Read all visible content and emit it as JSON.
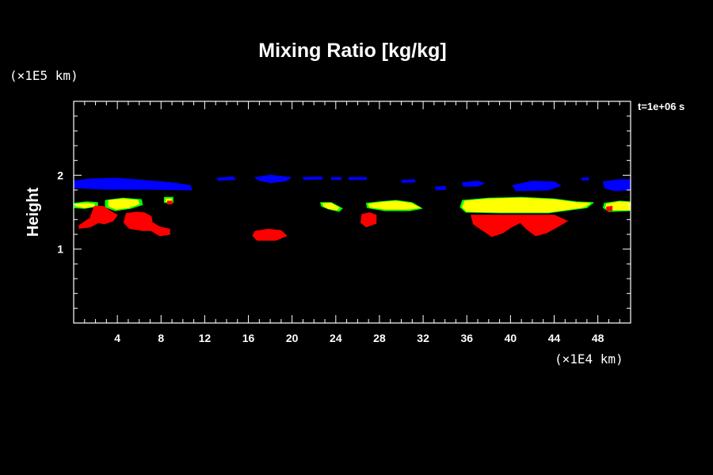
{
  "chart_data": {
    "type": "heatmap",
    "title": "Mixing Ratio [kg/kg]",
    "ylabel": "Height",
    "y_unit": "(×1E5 km)",
    "x_unit": "(×1E4 km)",
    "time_label": "t=1e+06 s",
    "xlim": [
      0,
      51
    ],
    "ylim": [
      0,
      3
    ],
    "x_ticks": [
      4,
      8,
      12,
      16,
      20,
      24,
      28,
      32,
      36,
      40,
      44,
      48
    ],
    "y_ticks": [
      1,
      2
    ],
    "levels": [
      {
        "level": "blue",
        "color": "#0000ff"
      },
      {
        "level": "green",
        "color": "#00ff00"
      },
      {
        "level": "yellow",
        "color": "#ffff00"
      },
      {
        "level": "red",
        "color": "#ff0000"
      }
    ],
    "regions": [
      {
        "level": "blue",
        "pts": [
          [
            0,
            1.92
          ],
          [
            1.5,
            1.95
          ],
          [
            4,
            1.96
          ],
          [
            6.5,
            1.93
          ],
          [
            9,
            1.9
          ],
          [
            10.7,
            1.86
          ],
          [
            10.8,
            1.8
          ],
          [
            7,
            1.81
          ],
          [
            3,
            1.81
          ],
          [
            0,
            1.83
          ]
        ]
      },
      {
        "level": "blue",
        "pts": [
          [
            13.1,
            1.96
          ],
          [
            14.6,
            1.98
          ],
          [
            14.8,
            1.94
          ],
          [
            13.3,
            1.93
          ]
        ]
      },
      {
        "level": "blue",
        "pts": [
          [
            16.6,
            1.97
          ],
          [
            18,
            2.0
          ],
          [
            19.9,
            1.97
          ],
          [
            19.4,
            1.92
          ],
          [
            18,
            1.9
          ],
          [
            17,
            1.93
          ]
        ]
      },
      {
        "level": "blue",
        "pts": [
          [
            21,
            1.97
          ],
          [
            22.7,
            1.98
          ],
          [
            22.8,
            1.95
          ],
          [
            21.1,
            1.94
          ]
        ]
      },
      {
        "level": "blue",
        "pts": [
          [
            23.6,
            1.97
          ],
          [
            24.5,
            1.97
          ],
          [
            24.5,
            1.94
          ],
          [
            23.6,
            1.94
          ]
        ]
      },
      {
        "level": "blue",
        "pts": [
          [
            25.2,
            1.97
          ],
          [
            26.8,
            1.97
          ],
          [
            26.8,
            1.94
          ],
          [
            25.2,
            1.94
          ]
        ]
      },
      {
        "level": "blue",
        "pts": [
          [
            30,
            1.93
          ],
          [
            31.2,
            1.94
          ],
          [
            31.3,
            1.91
          ],
          [
            30.1,
            1.9
          ]
        ]
      },
      {
        "level": "blue",
        "pts": [
          [
            33.1,
            1.84
          ],
          [
            34,
            1.85
          ],
          [
            34.1,
            1.81
          ],
          [
            33.2,
            1.8
          ]
        ]
      },
      {
        "level": "blue",
        "pts": [
          [
            35.6,
            1.9
          ],
          [
            37,
            1.92
          ],
          [
            37.6,
            1.89
          ],
          [
            37,
            1.85
          ],
          [
            35.7,
            1.85
          ]
        ]
      },
      {
        "level": "blue",
        "pts": [
          [
            40.2,
            1.86
          ],
          [
            42,
            1.92
          ],
          [
            44,
            1.91
          ],
          [
            44.6,
            1.86
          ],
          [
            43.5,
            1.8
          ],
          [
            40.5,
            1.79
          ]
        ]
      },
      {
        "level": "blue",
        "pts": [
          [
            46.5,
            1.96
          ],
          [
            47.1,
            1.97
          ],
          [
            47.2,
            1.94
          ],
          [
            46.6,
            1.93
          ]
        ]
      },
      {
        "level": "blue",
        "pts": [
          [
            48.5,
            1.91
          ],
          [
            50,
            1.94
          ],
          [
            51,
            1.94
          ],
          [
            51,
            1.8
          ],
          [
            49.5,
            1.79
          ],
          [
            48.6,
            1.83
          ]
        ]
      },
      {
        "level": "green",
        "pts": [
          [
            0,
            1.62
          ],
          [
            1.2,
            1.64
          ],
          [
            2.2,
            1.63
          ],
          [
            2.2,
            1.58
          ],
          [
            1,
            1.55
          ],
          [
            0,
            1.56
          ]
        ]
      },
      {
        "level": "green",
        "pts": [
          [
            2.9,
            1.66
          ],
          [
            4.5,
            1.69
          ],
          [
            6.2,
            1.67
          ],
          [
            6.3,
            1.6
          ],
          [
            5.2,
            1.55
          ],
          [
            3.8,
            1.52
          ],
          [
            2.9,
            1.57
          ]
        ]
      },
      {
        "level": "green",
        "pts": [
          [
            8.3,
            1.7
          ],
          [
            9.1,
            1.7
          ],
          [
            9.1,
            1.63
          ],
          [
            8.3,
            1.63
          ]
        ]
      },
      {
        "level": "green",
        "pts": [
          [
            22.6,
            1.63
          ],
          [
            23.6,
            1.63
          ],
          [
            24.6,
            1.55
          ],
          [
            24.3,
            1.51
          ],
          [
            23.4,
            1.54
          ],
          [
            22.7,
            1.58
          ]
        ]
      },
      {
        "level": "green",
        "pts": [
          [
            26.8,
            1.62
          ],
          [
            28,
            1.64
          ],
          [
            29.5,
            1.66
          ],
          [
            31,
            1.63
          ],
          [
            31.9,
            1.55
          ],
          [
            30.8,
            1.52
          ],
          [
            28.5,
            1.52
          ],
          [
            26.9,
            1.56
          ]
        ]
      },
      {
        "level": "green",
        "pts": [
          [
            35.6,
            1.66
          ],
          [
            38,
            1.69
          ],
          [
            41,
            1.7
          ],
          [
            44,
            1.68
          ],
          [
            46,
            1.64
          ],
          [
            47.6,
            1.63
          ],
          [
            47,
            1.56
          ],
          [
            43.5,
            1.49
          ],
          [
            39,
            1.49
          ],
          [
            35.9,
            1.5
          ],
          [
            35.4,
            1.57
          ]
        ]
      },
      {
        "level": "green",
        "pts": [
          [
            48.6,
            1.62
          ],
          [
            50,
            1.65
          ],
          [
            51,
            1.64
          ],
          [
            51,
            1.52
          ],
          [
            49,
            1.51
          ],
          [
            48.5,
            1.56
          ]
        ]
      },
      {
        "level": "yellow",
        "pts": [
          [
            0.2,
            1.61
          ],
          [
            1.1,
            1.62
          ],
          [
            1.9,
            1.61
          ],
          [
            1.9,
            1.58
          ],
          [
            1,
            1.56
          ],
          [
            0.2,
            1.58
          ]
        ]
      },
      {
        "level": "yellow",
        "pts": [
          [
            3.2,
            1.66
          ],
          [
            4.6,
            1.68
          ],
          [
            5.9,
            1.66
          ],
          [
            6,
            1.61
          ],
          [
            5,
            1.56
          ],
          [
            3.9,
            1.54
          ],
          [
            3.2,
            1.58
          ]
        ]
      },
      {
        "level": "yellow",
        "pts": [
          [
            8.45,
            1.68
          ],
          [
            8.95,
            1.68
          ],
          [
            8.95,
            1.64
          ],
          [
            8.45,
            1.64
          ]
        ]
      },
      {
        "level": "yellow",
        "pts": [
          [
            22.8,
            1.62
          ],
          [
            23.6,
            1.62
          ],
          [
            24.3,
            1.56
          ],
          [
            24.1,
            1.53
          ],
          [
            23.3,
            1.55
          ],
          [
            22.9,
            1.58
          ]
        ]
      },
      {
        "level": "yellow",
        "pts": [
          [
            27,
            1.61
          ],
          [
            28,
            1.63
          ],
          [
            29.5,
            1.65
          ],
          [
            30.9,
            1.62
          ],
          [
            31.7,
            1.56
          ],
          [
            30.7,
            1.54
          ],
          [
            28.5,
            1.54
          ],
          [
            27.1,
            1.57
          ]
        ]
      },
      {
        "level": "yellow",
        "pts": [
          [
            35.8,
            1.65
          ],
          [
            38,
            1.68
          ],
          [
            41,
            1.69
          ],
          [
            44,
            1.67
          ],
          [
            46,
            1.63
          ],
          [
            47.3,
            1.62
          ],
          [
            46.8,
            1.57
          ],
          [
            43.5,
            1.5
          ],
          [
            39,
            1.5
          ],
          [
            36,
            1.51
          ],
          [
            35.6,
            1.57
          ]
        ]
      },
      {
        "level": "yellow",
        "pts": [
          [
            48.8,
            1.61
          ],
          [
            50,
            1.64
          ],
          [
            51,
            1.63
          ],
          [
            51,
            1.53
          ],
          [
            49.1,
            1.53
          ],
          [
            48.7,
            1.56
          ]
        ]
      },
      {
        "level": "red",
        "pts": [
          [
            0.5,
            1.32
          ],
          [
            1.5,
            1.42
          ],
          [
            1.9,
            1.58
          ],
          [
            2.7,
            1.58
          ],
          [
            3.3,
            1.52
          ],
          [
            4,
            1.46
          ],
          [
            3.6,
            1.38
          ],
          [
            2.8,
            1.34
          ],
          [
            2.3,
            1.36
          ],
          [
            1.5,
            1.3
          ],
          [
            0.5,
            1.28
          ]
        ]
      },
      {
        "level": "red",
        "pts": [
          [
            4.8,
            1.48
          ],
          [
            5.7,
            1.5
          ],
          [
            6.5,
            1.49
          ],
          [
            7.1,
            1.44
          ],
          [
            7.2,
            1.36
          ],
          [
            7.9,
            1.3
          ],
          [
            8.8,
            1.27
          ],
          [
            8.8,
            1.2
          ],
          [
            7.9,
            1.18
          ],
          [
            7.1,
            1.25
          ],
          [
            6.3,
            1.25
          ],
          [
            5.1,
            1.28
          ],
          [
            4.6,
            1.36
          ]
        ]
      },
      {
        "level": "red",
        "pts": [
          [
            8.6,
            1.65
          ],
          [
            9,
            1.65
          ],
          [
            9,
            1.61
          ],
          [
            8.6,
            1.61
          ]
        ]
      },
      {
        "level": "red",
        "pts": [
          [
            16.6,
            1.24
          ],
          [
            17.8,
            1.27
          ],
          [
            19,
            1.25
          ],
          [
            19.5,
            1.18
          ],
          [
            18.5,
            1.12
          ],
          [
            16.8,
            1.12
          ],
          [
            16.4,
            1.18
          ]
        ]
      },
      {
        "level": "red",
        "pts": [
          [
            26.4,
            1.47
          ],
          [
            27.1,
            1.49
          ],
          [
            27.7,
            1.46
          ],
          [
            27.7,
            1.35
          ],
          [
            26.8,
            1.3
          ],
          [
            26.3,
            1.36
          ]
        ]
      },
      {
        "level": "red",
        "pts": [
          [
            36.4,
            1.46
          ],
          [
            42.2,
            1.46
          ],
          [
            44,
            1.46
          ],
          [
            45.2,
            1.38
          ],
          [
            44.3,
            1.3
          ],
          [
            43.3,
            1.22
          ],
          [
            42.3,
            1.18
          ],
          [
            41.5,
            1.27
          ],
          [
            40.9,
            1.36
          ],
          [
            40.1,
            1.3
          ],
          [
            39.3,
            1.22
          ],
          [
            38.3,
            1.17
          ],
          [
            37.6,
            1.24
          ],
          [
            36.6,
            1.34
          ]
        ]
      },
      {
        "level": "red",
        "pts": [
          [
            48.8,
            1.57
          ],
          [
            49.3,
            1.58
          ],
          [
            49.3,
            1.52
          ],
          [
            48.8,
            1.52
          ]
        ]
      }
    ]
  }
}
